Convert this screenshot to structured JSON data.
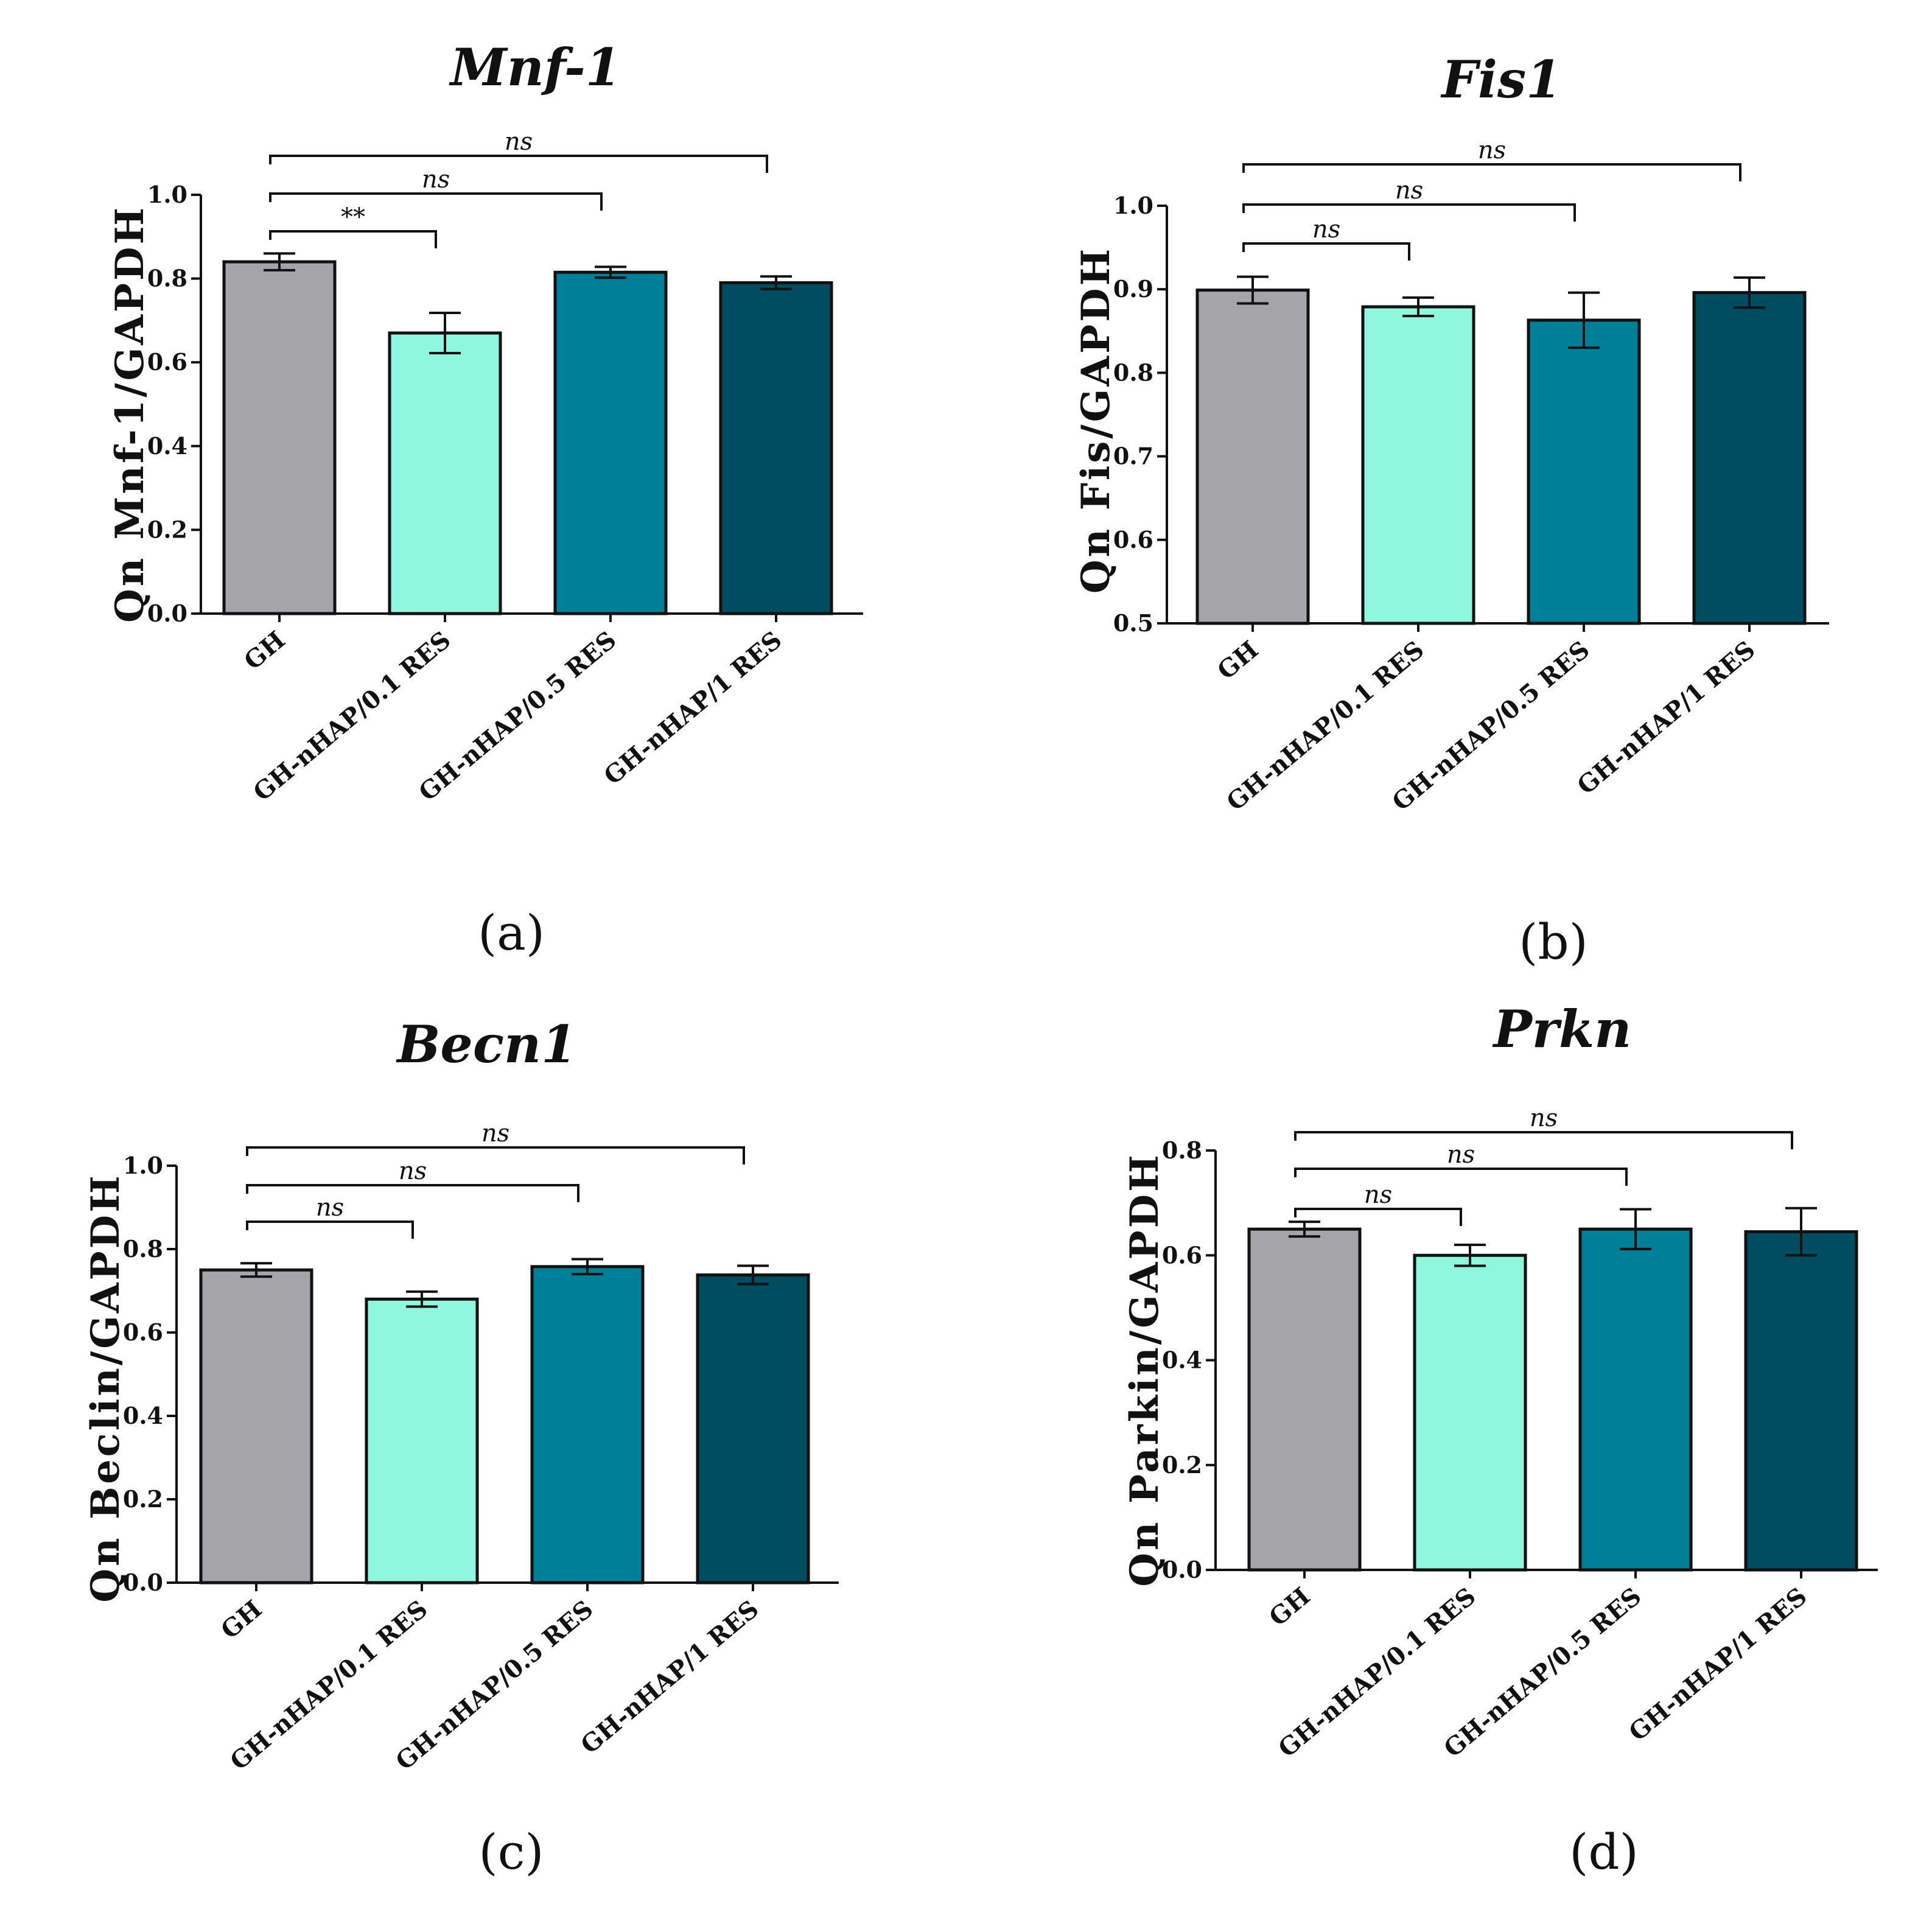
{
  "chart_data": [
    {
      "type": "bar",
      "title": "Mnf-1",
      "ylabel": "Qn Mnf-1/GAPDH",
      "panel_label": "(a)",
      "categories": [
        "GH",
        "GH-nHAP/0.1 RES",
        "GH-nHAP/0.5 RES",
        "GH-nHAP/1 RES"
      ],
      "values": [
        0.84,
        0.67,
        0.815,
        0.79
      ],
      "errors": [
        0.02,
        0.048,
        0.013,
        0.015
      ],
      "colors": [
        "#a5a4a9",
        "#8ef7de",
        "#007f98",
        "#004c60"
      ],
      "ylim": [
        0,
        1.0
      ],
      "yticks": [
        "0.0",
        "0.2",
        "0.4",
        "0.6",
        "0.8",
        "1.0"
      ],
      "significance": [
        {
          "from": "GH",
          "to": "GH-nHAP/0.1 RES",
          "label": "**"
        },
        {
          "from": "GH",
          "to": "GH-nHAP/0.5 RES",
          "label": "ns"
        },
        {
          "from": "GH",
          "to": "GH-nHAP/1 RES",
          "label": "ns"
        }
      ],
      "grid": false,
      "legend": "none"
    },
    {
      "type": "bar",
      "title": "Fis1",
      "ylabel": "Qn Fis/GAPDH",
      "panel_label": "(b)",
      "categories": [
        "GH",
        "GH-nHAP/0.1 RES",
        "GH-nHAP/0.5 RES",
        "GH-nHAP/1 RES"
      ],
      "values": [
        0.899,
        0.879,
        0.863,
        0.896
      ],
      "errors": [
        0.016,
        0.011,
        0.033,
        0.018
      ],
      "colors": [
        "#a5a4a9",
        "#8ef7de",
        "#007f98",
        "#004c60"
      ],
      "ylim": [
        0.5,
        1.0
      ],
      "yticks": [
        "0.5",
        "0.6",
        "0.7",
        "0.8",
        "0.9",
        "1.0"
      ],
      "significance": [
        {
          "from": "GH",
          "to": "GH-nHAP/0.1 RES",
          "label": "ns"
        },
        {
          "from": "GH",
          "to": "GH-nHAP/0.5 RES",
          "label": "ns"
        },
        {
          "from": "GH",
          "to": "GH-nHAP/1 RES",
          "label": "ns"
        }
      ],
      "grid": false,
      "legend": "none"
    },
    {
      "type": "bar",
      "title": "Becn1",
      "ylabel": "Qn Beclin/GAPDH",
      "panel_label": "(c)",
      "categories": [
        "GH",
        "GH-nHAP/0.1 RES",
        "GH-nHAP/0.5 RES",
        "GH-nHAP/1 RES"
      ],
      "values": [
        0.75,
        0.68,
        0.758,
        0.738
      ],
      "errors": [
        0.016,
        0.018,
        0.018,
        0.022
      ],
      "colors": [
        "#a5a4a9",
        "#8ef7de",
        "#007f98",
        "#004c60"
      ],
      "ylim": [
        0,
        1.0
      ],
      "yticks": [
        "0.0",
        "0.2",
        "0.4",
        "0.6",
        "0.8",
        "1.0"
      ],
      "significance": [
        {
          "from": "GH",
          "to": "GH-nHAP/0.1 RES",
          "label": "ns"
        },
        {
          "from": "GH",
          "to": "GH-nHAP/0.5 RES",
          "label": "ns"
        },
        {
          "from": "GH",
          "to": "GH-nHAP/1 RES",
          "label": "ns"
        }
      ],
      "grid": false,
      "legend": "none"
    },
    {
      "type": "bar",
      "title": "Prkn",
      "ylabel": "Qn Parkin/GAPDH",
      "panel_label": "(d)",
      "categories": [
        "GH",
        "GH-nHAP/0.1 RES",
        "GH-nHAP/0.5 RES",
        "GH-nHAP/1 RES"
      ],
      "values": [
        0.65,
        0.6,
        0.65,
        0.645
      ],
      "errors": [
        0.014,
        0.02,
        0.038,
        0.045
      ],
      "colors": [
        "#a5a4a9",
        "#8ef7de",
        "#007f98",
        "#004c60"
      ],
      "ylim": [
        0,
        0.8
      ],
      "yticks": [
        "0.0",
        "0.2",
        "0.4",
        "0.6",
        "0.8"
      ],
      "significance": [
        {
          "from": "GH",
          "to": "GH-nHAP/0.1 RES",
          "label": "ns"
        },
        {
          "from": "GH",
          "to": "GH-nHAP/0.5 RES",
          "label": "ns"
        },
        {
          "from": "GH",
          "to": "GH-nHAP/1 RES",
          "label": "ns"
        }
      ],
      "grid": false,
      "legend": "none"
    }
  ]
}
